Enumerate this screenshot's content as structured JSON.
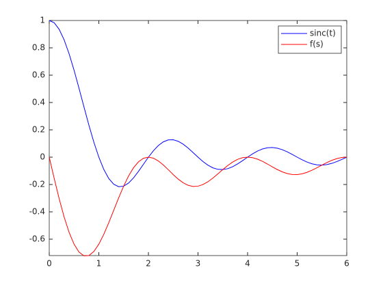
{
  "chart_data": {
    "type": "line",
    "x": [
      0,
      0.1,
      0.2,
      0.3,
      0.4,
      0.5,
      0.6,
      0.7,
      0.8,
      0.9,
      1,
      1.1,
      1.2,
      1.3,
      1.4,
      1.5,
      1.6,
      1.7,
      1.8,
      1.9,
      2,
      2.1,
      2.2,
      2.3,
      2.4,
      2.5,
      2.6,
      2.7,
      2.8,
      2.9,
      3,
      3.1,
      3.2,
      3.3,
      3.4,
      3.5,
      3.6,
      3.7,
      3.8,
      3.9,
      4,
      4.1,
      4.2,
      4.3,
      4.4,
      4.5,
      4.6,
      4.7,
      4.8,
      4.9,
      5,
      5.1,
      5.2,
      5.3,
      5.4,
      5.5,
      5.6,
      5.7,
      5.8,
      5.9,
      6
    ],
    "series": [
      {
        "name": "sinc(t)",
        "color": "#0000ff",
        "values": [
          1,
          0.9836,
          0.9355,
          0.8584,
          0.7568,
          0.6366,
          0.5046,
          0.3679,
          0.2339,
          0.1093,
          0,
          -0.0894,
          -0.1559,
          -0.1981,
          -0.2162,
          -0.2122,
          -0.1892,
          -0.1515,
          -0.1039,
          -0.0518,
          0,
          0.0468,
          0.085,
          0.112,
          0.1261,
          0.1273,
          0.1164,
          0.0954,
          0.0668,
          0.0339,
          0,
          -0.0317,
          -0.0585,
          -0.078,
          -0.089,
          -0.0909,
          -0.0841,
          -0.0696,
          -0.0492,
          -0.0252,
          0,
          0.024,
          0.0445,
          0.0599,
          0.0688,
          0.0707,
          0.0658,
          0.0548,
          0.039,
          0.0201,
          0,
          -0.0193,
          -0.036,
          -0.0486,
          -0.0561,
          -0.0579,
          -0.0541,
          -0.0452,
          -0.0323,
          -0.0167,
          0
        ]
      },
      {
        "name": "f(s)",
        "color": "#ff0000",
        "values": [
          0,
          -0.1557,
          -0.304,
          -0.4374,
          -0.5499,
          -0.6366,
          -0.6944,
          -0.722,
          -0.7198,
          -0.6901,
          -0.6366,
          -0.5646,
          -0.4799,
          -0.3888,
          -0.2976,
          -0.2122,
          -0.1375,
          -0.0772,
          -0.0338,
          -0.0082,
          0,
          -0.0074,
          -0.0276,
          -0.057,
          -0.0916,
          -0.1273,
          -0.1603,
          -0.1872,
          -0.2057,
          -0.2142,
          -0.2122,
          -0.2003,
          -0.1799,
          -0.1532,
          -0.1225,
          -0.0909,
          -0.0611,
          -0.0355,
          -0.016,
          -0.004,
          0,
          -0.0038,
          -0.0145,
          -0.0305,
          -0.05,
          -0.0707,
          -0.0906,
          -0.1075,
          -0.12,
          -0.1267,
          -0.1273,
          -0.1218,
          -0.1107,
          -0.0954,
          -0.0772,
          -0.0579,
          -0.0393,
          -0.023,
          -0.0105,
          -0.0026,
          0
        ]
      }
    ],
    "xlim": [
      0,
      6
    ],
    "ylim": [
      -0.72,
      1
    ],
    "xticks": [
      0,
      1,
      2,
      3,
      4,
      5,
      6
    ],
    "yticks": [
      -0.6,
      -0.4,
      -0.2,
      0,
      0.2,
      0.4,
      0.6,
      0.8,
      1
    ],
    "grid": false,
    "legend": "top-right"
  }
}
